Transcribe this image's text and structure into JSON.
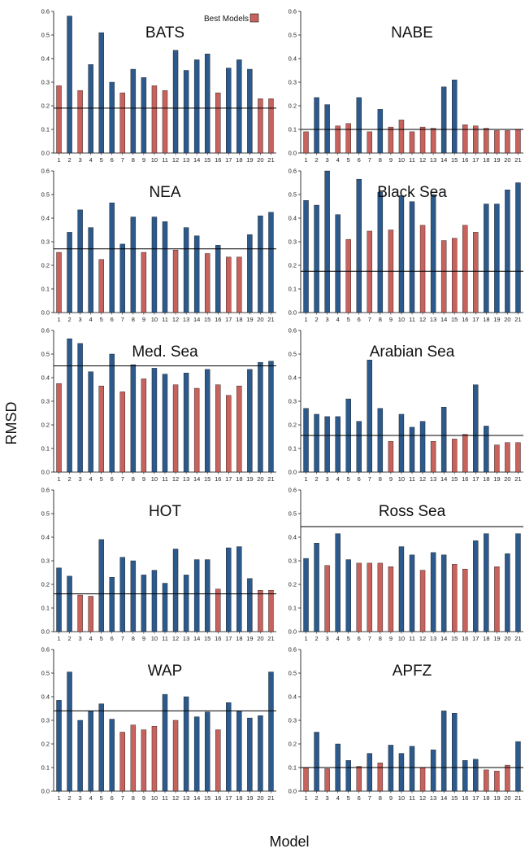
{
  "figure": {
    "ylabel": "RMSD",
    "xlabel": "Model",
    "legend_label": "Best Models"
  },
  "colors": {
    "best": "#c8625d",
    "other": "#2d5a8c",
    "bar_edge": "#111111",
    "reference_line": "#000000"
  },
  "chart_data": [
    {
      "type": "bar",
      "title": "BATS",
      "ylim": [
        0,
        0.6
      ],
      "reference": 0.19,
      "categories": [
        "1",
        "2",
        "3",
        "4",
        "5",
        "6",
        "7",
        "8",
        "9",
        "10",
        "11",
        "12",
        "13",
        "14",
        "15",
        "16",
        "17",
        "18",
        "19",
        "20",
        "21"
      ],
      "values": [
        0.285,
        0.58,
        0.265,
        0.375,
        0.51,
        0.3,
        0.255,
        0.355,
        0.32,
        0.285,
        0.265,
        0.435,
        0.35,
        0.395,
        0.42,
        0.255,
        0.36,
        0.395,
        0.355,
        0.23,
        0.23
      ],
      "best": [
        1,
        0,
        1,
        0,
        0,
        0,
        1,
        0,
        0,
        1,
        1,
        0,
        0,
        0,
        0,
        1,
        0,
        0,
        0,
        1,
        1
      ]
    },
    {
      "type": "bar",
      "title": "NABE",
      "ylim": [
        0,
        0.6
      ],
      "reference": 0.1,
      "categories": [
        "1",
        "2",
        "3",
        "4",
        "5",
        "6",
        "7",
        "8",
        "9",
        "10",
        "11",
        "12",
        "13",
        "14",
        "15",
        "16",
        "17",
        "18",
        "19",
        "20",
        "21"
      ],
      "values": [
        0.09,
        0.235,
        0.205,
        0.115,
        0.125,
        0.235,
        0.09,
        0.185,
        0.11,
        0.14,
        0.09,
        0.11,
        0.105,
        0.28,
        0.31,
        0.12,
        0.115,
        0.105,
        0.095,
        0.095,
        0.1
      ],
      "best": [
        1,
        0,
        0,
        1,
        1,
        0,
        1,
        0,
        1,
        1,
        1,
        1,
        1,
        0,
        0,
        1,
        1,
        1,
        1,
        1,
        1
      ]
    },
    {
      "type": "bar",
      "title": "NEA",
      "ylim": [
        0,
        0.6
      ],
      "reference": 0.27,
      "categories": [
        "1",
        "2",
        "3",
        "4",
        "5",
        "6",
        "7",
        "8",
        "9",
        "10",
        "11",
        "12",
        "13",
        "14",
        "15",
        "16",
        "17",
        "18",
        "19",
        "20",
        "21"
      ],
      "values": [
        0.255,
        0.34,
        0.435,
        0.36,
        0.225,
        0.465,
        0.29,
        0.405,
        0.255,
        0.405,
        0.385,
        0.265,
        0.36,
        0.325,
        0.25,
        0.285,
        0.235,
        0.235,
        0.33,
        0.41,
        0.425
      ],
      "best": [
        1,
        0,
        0,
        0,
        1,
        0,
        0,
        0,
        1,
        0,
        0,
        1,
        0,
        0,
        1,
        0,
        1,
        1,
        0,
        0,
        0
      ]
    },
    {
      "type": "bar",
      "title": "Black Sea",
      "ylim": [
        0,
        0.6
      ],
      "reference": 0.175,
      "categories": [
        "1",
        "2",
        "3",
        "4",
        "5",
        "6",
        "7",
        "8",
        "9",
        "10",
        "11",
        "12",
        "13",
        "14",
        "15",
        "16",
        "17",
        "18",
        "19",
        "20",
        "21"
      ],
      "values": [
        0.475,
        0.455,
        0.6,
        0.415,
        0.31,
        0.565,
        0.345,
        0.51,
        0.35,
        0.495,
        0.47,
        0.37,
        0.5,
        0.305,
        0.315,
        0.37,
        0.34,
        0.46,
        0.46,
        0.52,
        0.55
      ],
      "best": [
        0,
        0,
        0,
        0,
        1,
        0,
        1,
        0,
        1,
        0,
        0,
        1,
        0,
        1,
        1,
        1,
        1,
        0,
        0,
        0,
        0
      ]
    },
    {
      "type": "bar",
      "title": "Med. Sea",
      "ylim": [
        0,
        0.6
      ],
      "reference": 0.45,
      "categories": [
        "1",
        "2",
        "3",
        "4",
        "5",
        "6",
        "7",
        "8",
        "9",
        "10",
        "11",
        "12",
        "13",
        "14",
        "15",
        "16",
        "17",
        "18",
        "19",
        "20",
        "21"
      ],
      "values": [
        0.375,
        0.565,
        0.545,
        0.425,
        0.365,
        0.5,
        0.34,
        0.455,
        0.395,
        0.44,
        0.415,
        0.37,
        0.42,
        0.355,
        0.435,
        0.37,
        0.325,
        0.365,
        0.435,
        0.465,
        0.47
      ],
      "best": [
        1,
        0,
        0,
        0,
        1,
        0,
        1,
        0,
        1,
        0,
        0,
        1,
        0,
        1,
        0,
        1,
        1,
        1,
        0,
        0,
        0
      ]
    },
    {
      "type": "bar",
      "title": "Arabian Sea",
      "ylim": [
        0,
        0.6
      ],
      "reference": 0.155,
      "categories": [
        "1",
        "2",
        "3",
        "4",
        "5",
        "6",
        "7",
        "8",
        "9",
        "10",
        "11",
        "12",
        "13",
        "14",
        "15",
        "16",
        "17",
        "18",
        "19",
        "20",
        "21"
      ],
      "values": [
        0.27,
        0.245,
        0.235,
        0.235,
        0.31,
        0.215,
        0.475,
        0.27,
        0.13,
        0.245,
        0.19,
        0.215,
        0.13,
        0.275,
        0.14,
        0.16,
        0.37,
        0.195,
        0.115,
        0.125,
        0.125
      ],
      "best": [
        0,
        0,
        0,
        0,
        0,
        0,
        0,
        0,
        1,
        0,
        0,
        0,
        1,
        0,
        1,
        1,
        0,
        0,
        1,
        1,
        1
      ]
    },
    {
      "type": "bar",
      "title": "HOT",
      "ylim": [
        0,
        0.6
      ],
      "reference": 0.16,
      "categories": [
        "1",
        "2",
        "3",
        "4",
        "5",
        "6",
        "7",
        "8",
        "9",
        "10",
        "11",
        "12",
        "13",
        "14",
        "15",
        "16",
        "17",
        "18",
        "19",
        "20",
        "21"
      ],
      "values": [
        0.27,
        0.235,
        0.155,
        0.15,
        0.39,
        0.23,
        0.315,
        0.3,
        0.24,
        0.26,
        0.205,
        0.35,
        0.24,
        0.305,
        0.305,
        0.18,
        0.355,
        0.36,
        0.225,
        0.175,
        0.175
      ],
      "best": [
        0,
        0,
        1,
        1,
        0,
        0,
        0,
        0,
        0,
        0,
        0,
        0,
        0,
        0,
        0,
        1,
        0,
        0,
        0,
        1,
        1
      ]
    },
    {
      "type": "bar",
      "title": "Ross Sea",
      "ylim": [
        0,
        0.6
      ],
      "reference": 0.445,
      "categories": [
        "1",
        "2",
        "3",
        "4",
        "5",
        "6",
        "7",
        "8",
        "9",
        "10",
        "11",
        "12",
        "13",
        "14",
        "15",
        "16",
        "17",
        "18",
        "19",
        "20",
        "21"
      ],
      "values": [
        0.31,
        0.375,
        0.28,
        0.415,
        0.305,
        0.29,
        0.29,
        0.29,
        0.275,
        0.36,
        0.325,
        0.26,
        0.335,
        0.325,
        0.285,
        0.265,
        0.385,
        0.415,
        0.275,
        0.33,
        0.415
      ],
      "best": [
        0,
        0,
        1,
        0,
        0,
        1,
        1,
        1,
        1,
        0,
        0,
        1,
        0,
        0,
        1,
        1,
        0,
        0,
        1,
        0,
        0
      ]
    },
    {
      "type": "bar",
      "title": "WAP",
      "ylim": [
        0,
        0.6
      ],
      "reference": 0.34,
      "categories": [
        "1",
        "2",
        "3",
        "4",
        "5",
        "6",
        "7",
        "8",
        "9",
        "10",
        "11",
        "12",
        "13",
        "14",
        "15",
        "16",
        "17",
        "18",
        "19",
        "20",
        "21"
      ],
      "values": [
        0.385,
        0.505,
        0.3,
        0.34,
        0.37,
        0.305,
        0.25,
        0.28,
        0.26,
        0.275,
        0.41,
        0.3,
        0.4,
        0.315,
        0.335,
        0.26,
        0.375,
        0.34,
        0.31,
        0.32,
        0.505
      ],
      "best": [
        0,
        0,
        0,
        0,
        0,
        0,
        1,
        1,
        1,
        1,
        0,
        1,
        0,
        0,
        0,
        1,
        0,
        0,
        0,
        0,
        0
      ]
    },
    {
      "type": "bar",
      "title": "APFZ",
      "ylim": [
        0,
        0.6
      ],
      "reference": 0.1,
      "categories": [
        "1",
        "2",
        "3",
        "4",
        "5",
        "6",
        "7",
        "8",
        "9",
        "10",
        "11",
        "12",
        "13",
        "14",
        "15",
        "16",
        "17",
        "18",
        "19",
        "20",
        "21"
      ],
      "values": [
        0.1,
        0.25,
        0.095,
        0.2,
        0.13,
        0.105,
        0.16,
        0.12,
        0.195,
        0.16,
        0.19,
        0.1,
        0.175,
        0.34,
        0.33,
        0.13,
        0.135,
        0.09,
        0.085,
        0.11,
        0.21
      ],
      "best": [
        1,
        0,
        1,
        0,
        0,
        1,
        0,
        1,
        0,
        0,
        0,
        1,
        0,
        0,
        0,
        0,
        0,
        1,
        1,
        1,
        0
      ]
    }
  ],
  "yticks": [
    "0.0",
    "0.1",
    "0.2",
    "0.3",
    "0.4",
    "0.5",
    "0.6"
  ]
}
